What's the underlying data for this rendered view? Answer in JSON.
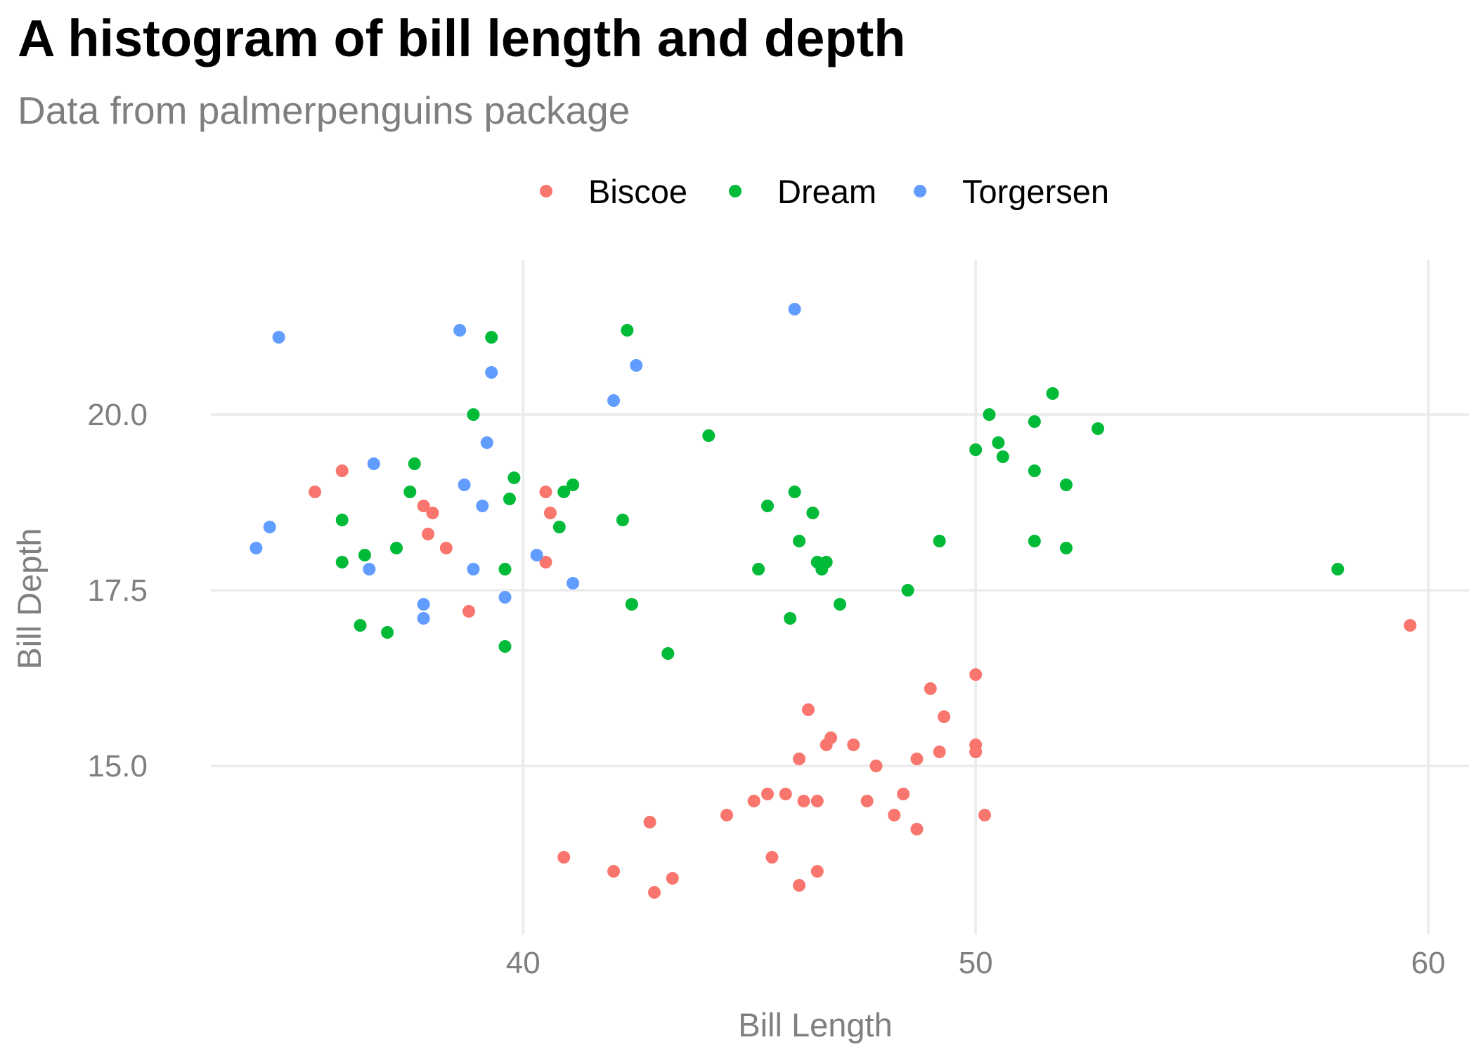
{
  "title": "A histogram of bill length and depth",
  "subtitle": "Data from palmerpenguins package",
  "chart_data": {
    "type": "scatter",
    "title": "A histogram of bill length and depth",
    "subtitle": "Data from palmerpenguins package",
    "xlabel": "Bill Length",
    "ylabel": "Bill Depth",
    "xlim": [
      33.1,
      60.9
    ],
    "ylim": [
      12.6,
      22.2
    ],
    "xticks": [
      40,
      50,
      60
    ],
    "xtick_labels": [
      "40",
      "50",
      "60"
    ],
    "yticks": [
      15.0,
      17.5,
      20.0
    ],
    "ytick_labels": [
      "15.0",
      "17.5",
      "20.0"
    ],
    "grid": true,
    "legend_position": "top",
    "series": [
      {
        "name": "Biscoe",
        "color": "#F8766D",
        "points": [
          [
            35.4,
            18.9
          ],
          [
            36.0,
            19.2
          ],
          [
            37.8,
            18.7
          ],
          [
            37.9,
            18.3
          ],
          [
            38.0,
            18.6
          ],
          [
            38.3,
            18.1
          ],
          [
            38.8,
            17.2
          ],
          [
            40.5,
            18.9
          ],
          [
            40.6,
            18.6
          ],
          [
            40.5,
            17.9
          ],
          [
            40.9,
            13.7
          ],
          [
            42.0,
            13.5
          ],
          [
            42.8,
            14.2
          ],
          [
            42.9,
            13.2
          ],
          [
            43.3,
            13.4
          ],
          [
            44.5,
            14.3
          ],
          [
            45.1,
            14.5
          ],
          [
            45.4,
            14.6
          ],
          [
            45.5,
            13.7
          ],
          [
            45.8,
            14.6
          ],
          [
            46.1,
            13.3
          ],
          [
            46.1,
            15.1
          ],
          [
            46.2,
            14.5
          ],
          [
            46.3,
            15.8
          ],
          [
            46.5,
            14.5
          ],
          [
            46.5,
            13.5
          ],
          [
            46.7,
            15.3
          ],
          [
            46.8,
            15.4
          ],
          [
            47.3,
            15.3
          ],
          [
            47.6,
            14.5
          ],
          [
            47.8,
            15.0
          ],
          [
            48.2,
            14.3
          ],
          [
            48.4,
            14.6
          ],
          [
            48.7,
            14.1
          ],
          [
            48.7,
            15.1
          ],
          [
            49.0,
            16.1
          ],
          [
            49.2,
            15.2
          ],
          [
            49.3,
            15.7
          ],
          [
            50.0,
            16.3
          ],
          [
            50.0,
            15.3
          ],
          [
            50.0,
            15.2
          ],
          [
            50.2,
            14.3
          ],
          [
            59.6,
            17.0
          ]
        ]
      },
      {
        "name": "Dream",
        "color": "#00BA38",
        "points": [
          [
            36.0,
            18.5
          ],
          [
            36.0,
            17.9
          ],
          [
            36.4,
            17.0
          ],
          [
            36.5,
            18.0
          ],
          [
            37.0,
            16.9
          ],
          [
            37.2,
            18.1
          ],
          [
            37.5,
            18.9
          ],
          [
            37.6,
            19.3
          ],
          [
            38.9,
            20.0
          ],
          [
            39.3,
            21.1
          ],
          [
            39.6,
            17.8
          ],
          [
            39.6,
            16.7
          ],
          [
            39.7,
            18.8
          ],
          [
            39.8,
            19.1
          ],
          [
            40.8,
            18.4
          ],
          [
            40.9,
            18.9
          ],
          [
            41.1,
            19.0
          ],
          [
            42.2,
            18.5
          ],
          [
            42.3,
            21.2
          ],
          [
            42.4,
            17.3
          ],
          [
            43.2,
            16.6
          ],
          [
            44.1,
            19.7
          ],
          [
            45.2,
            17.8
          ],
          [
            45.4,
            18.7
          ],
          [
            45.9,
            17.1
          ],
          [
            46.0,
            18.9
          ],
          [
            46.1,
            18.2
          ],
          [
            46.4,
            18.6
          ],
          [
            46.5,
            17.9
          ],
          [
            46.6,
            17.8
          ],
          [
            46.7,
            17.9
          ],
          [
            47.0,
            17.3
          ],
          [
            48.5,
            17.5
          ],
          [
            49.2,
            18.2
          ],
          [
            50.0,
            19.5
          ],
          [
            50.3,
            20.0
          ],
          [
            50.5,
            19.6
          ],
          [
            50.6,
            19.4
          ],
          [
            51.3,
            19.9
          ],
          [
            51.3,
            19.2
          ],
          [
            51.3,
            18.2
          ],
          [
            51.7,
            20.3
          ],
          [
            52.0,
            18.1
          ],
          [
            52.0,
            19.0
          ],
          [
            52.7,
            19.8
          ],
          [
            58.0,
            17.8
          ]
        ]
      },
      {
        "name": "Torgersen",
        "color": "#619CFF",
        "points": [
          [
            34.4,
            18.4
          ],
          [
            34.1,
            18.1
          ],
          [
            34.6,
            21.1
          ],
          [
            36.6,
            17.8
          ],
          [
            36.7,
            19.3
          ],
          [
            37.8,
            17.3
          ],
          [
            37.8,
            17.1
          ],
          [
            38.6,
            21.2
          ],
          [
            38.7,
            19.0
          ],
          [
            38.9,
            17.8
          ],
          [
            39.1,
            18.7
          ],
          [
            39.2,
            19.6
          ],
          [
            39.3,
            20.6
          ],
          [
            39.6,
            17.4
          ],
          [
            40.3,
            18.0
          ],
          [
            41.1,
            17.6
          ],
          [
            42.0,
            20.2
          ],
          [
            42.5,
            20.7
          ],
          [
            46.0,
            21.5
          ]
        ]
      }
    ]
  }
}
